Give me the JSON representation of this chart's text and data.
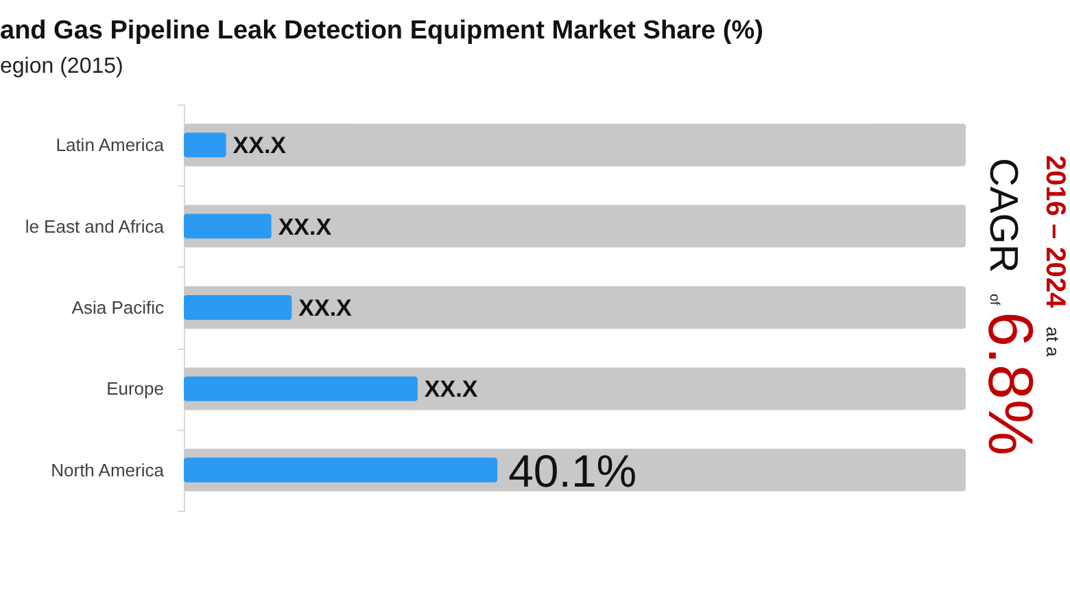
{
  "chart_data": {
    "type": "bar",
    "orientation": "horizontal",
    "title": "and Gas Pipeline Leak Detection Equipment Market Share (%)",
    "subtitle": "egion (2015)",
    "categories": [
      "Latin America",
      "le East and Africa",
      "Asia Pacific",
      "Europe",
      "North America"
    ],
    "series": [
      {
        "color": "#c8c8c8",
        "values": [
          100,
          100,
          100,
          100,
          100
        ]
      },
      {
        "color": "#2b9af3",
        "values": [
          5.4,
          11.2,
          13.8,
          29.9,
          40.1
        ],
        "value_labels": [
          "XX.X",
          "XX.X",
          "XX.X",
          "XX.X",
          "40.1%"
        ]
      }
    ],
    "xlim": [
      0,
      100
    ],
    "tick_labels": "y",
    "annotations": [
      "2016 – 2024",
      "at a",
      "CAGR",
      "of",
      "6.8%"
    ]
  }
}
